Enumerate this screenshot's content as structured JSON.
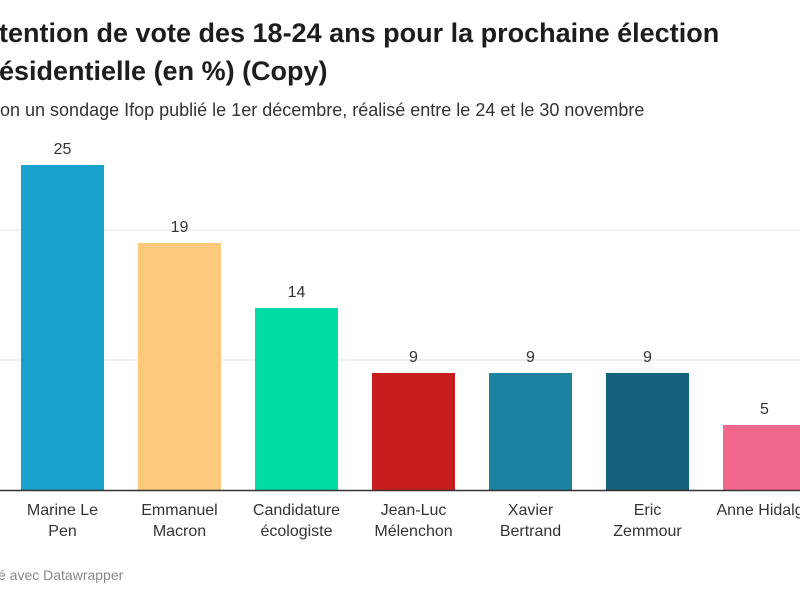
{
  "header": {
    "title_line1": "tention de vote des 18-24 ans pour la prochaine élection",
    "title_line2": "ésidentielle (en %) (Copy)",
    "subtitle": "on un sondage Ifop publié le 1er décembre, réalisé entre le 24 et le 30 novembre"
  },
  "footer": {
    "credit": "é avec Datawrapper"
  },
  "chart_data": {
    "type": "bar",
    "categories": [
      [
        "Marine Le",
        "Pen"
      ],
      [
        "Emmanuel",
        "Macron"
      ],
      [
        "Candidature",
        "écologiste"
      ],
      [
        "Jean-Luc",
        "Mélenchon"
      ],
      [
        "Xavier",
        "Bertrand"
      ],
      [
        "Eric",
        "Zemmour"
      ],
      [
        "Anne Hidalgo",
        ""
      ]
    ],
    "values": [
      25,
      19,
      14,
      9,
      9,
      9,
      5
    ],
    "colors": [
      "#18a1cd",
      "#fdc97a",
      "#00dca6",
      "#c71e1d",
      "#1d81a2",
      "#15607a",
      "#f1688c"
    ],
    "ylim": [
      0,
      30
    ],
    "gridlines": [
      10,
      20
    ],
    "grid": true
  }
}
